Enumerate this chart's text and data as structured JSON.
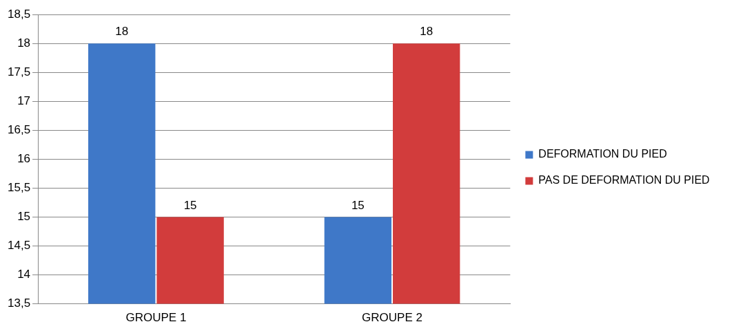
{
  "chart_data": {
    "type": "bar",
    "categories": [
      "GROUPE 1",
      "GROUPE 2"
    ],
    "series": [
      {
        "name": "DEFORMATION DU PIED",
        "color": "#3f78c8",
        "values": [
          18,
          15
        ]
      },
      {
        "name": "PAS DE DEFORMATION DU PIED",
        "color": "#d23c3c",
        "values": [
          15,
          18
        ]
      }
    ],
    "ylim": [
      13.5,
      18.5
    ],
    "yticks": [
      {
        "value": 13.5,
        "label": "13,5"
      },
      14,
      {
        "value": 14.5,
        "label": "14,5"
      },
      15,
      {
        "value": 15.5,
        "label": "15,5"
      },
      16,
      {
        "value": 16.5,
        "label": "16,5"
      },
      17,
      {
        "value": 17.5,
        "label": "17,5"
      },
      18,
      {
        "value": 18.5,
        "label": "18,5"
      }
    ],
    "grid": "y",
    "legend": "right",
    "data_labels": true
  }
}
